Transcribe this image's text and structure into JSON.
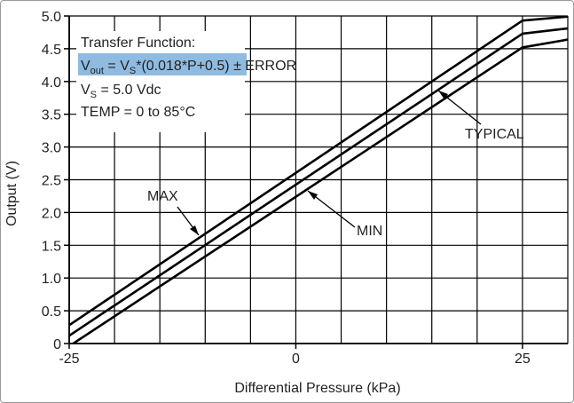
{
  "chart_data": {
    "type": "line",
    "xlabel": "Differential Pressure (kPa)",
    "ylabel": "Output (V)",
    "xlim": [
      -25,
      30
    ],
    "ylim": [
      0,
      5.0
    ],
    "x_ticks": [
      -25,
      0,
      25
    ],
    "y_ticks": [
      0,
      0.5,
      1.0,
      1.5,
      2.0,
      2.5,
      3.0,
      3.5,
      4.0,
      4.5,
      5.0
    ],
    "y_tick_labels": [
      "0",
      "0.5",
      "1.0",
      "1.5",
      "2.0",
      "2.5",
      "3.0",
      "3.5",
      "4.0",
      "4.5",
      "5.0"
    ],
    "grid": true,
    "series": [
      {
        "name": "MAX",
        "x": [
          -25,
          25,
          30
        ],
        "y": [
          0.28,
          4.93,
          4.99
        ]
      },
      {
        "name": "TYPICAL",
        "x": [
          -25,
          25,
          30
        ],
        "y": [
          0.12,
          4.73,
          4.81
        ]
      },
      {
        "name": "MIN",
        "x": [
          -25,
          25,
          30
        ],
        "y": [
          -0.04,
          4.52,
          4.64
        ]
      }
    ],
    "annotations": {
      "max_label": "MAX",
      "typical_label": "TYPICAL",
      "min_label": "MIN"
    },
    "legend_box": {
      "line1": "Transfer Function:",
      "line2_v": "V",
      "line2_out": "out",
      "line2_mid": " = V",
      "line2_s": "S",
      "line2_formula": "*(0.018*P+0.5)",
      "line2_error": " ± ERROR",
      "line3_v": "V",
      "line3_s": "S",
      "line3_rest": " = 5.0 Vdc",
      "line4": "TEMP = 0 to 85°C"
    },
    "colors": {
      "line": "#000000",
      "highlight": "#8fbbe0"
    }
  }
}
